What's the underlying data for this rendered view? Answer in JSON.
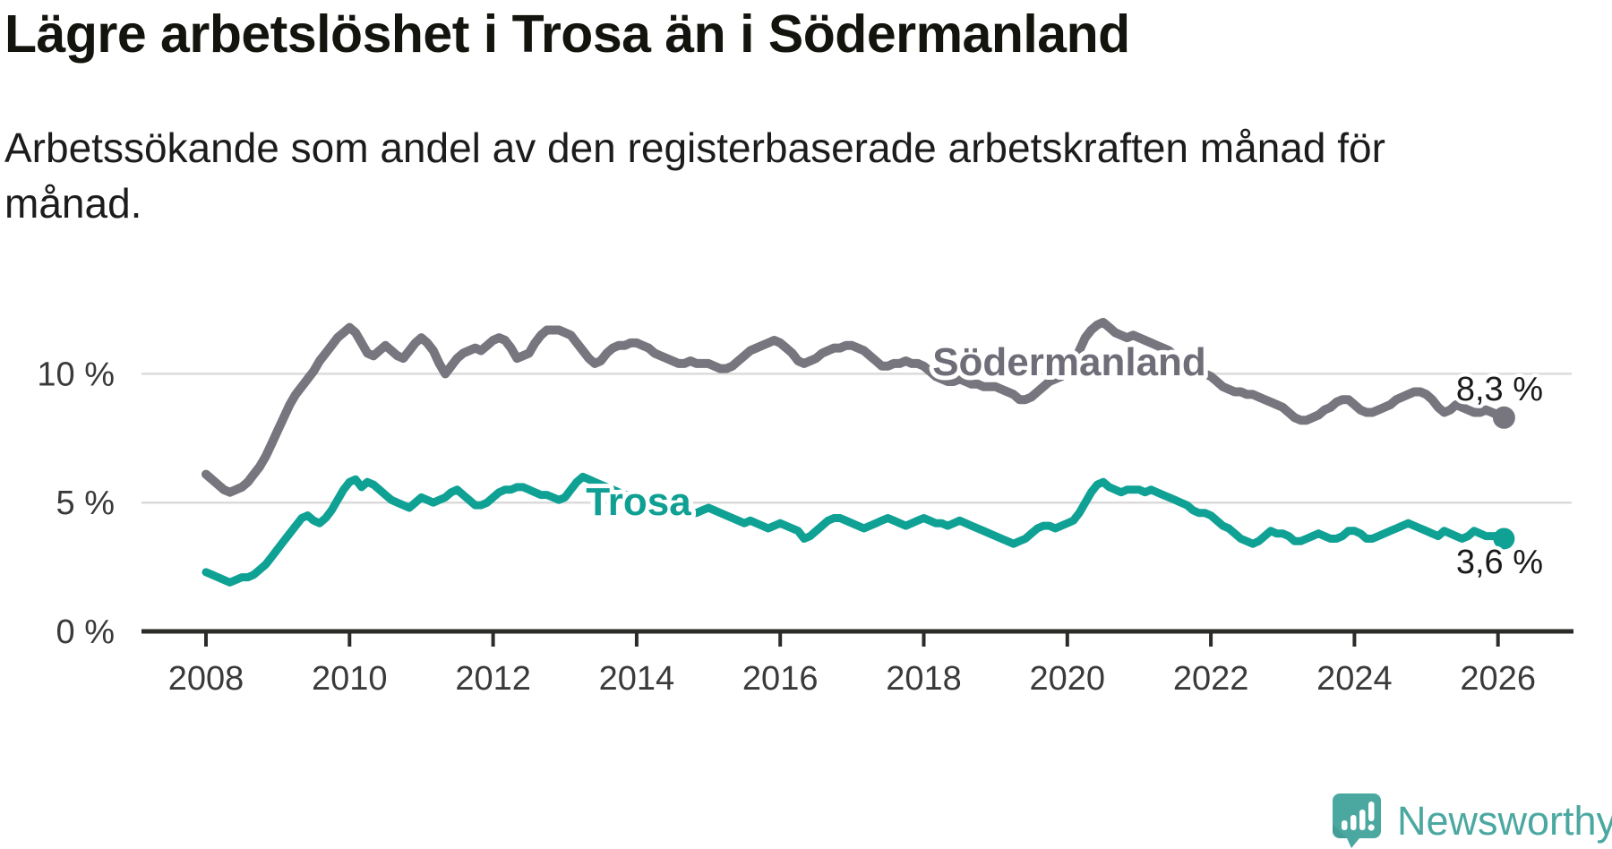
{
  "header": {
    "title": "Lägre arbetslöshet i Trosa än i Södermanland",
    "subtitle_lines": [
      "Arbetssökande som andel av den registerbaserade arbetskraften månad för",
      "månad."
    ]
  },
  "chart_data": {
    "type": "line",
    "x_unit": "month",
    "x_start_year": 2008,
    "points_per_year": 12,
    "x_ticks": [
      "2008",
      "2010",
      "2012",
      "2014",
      "2016",
      "2018",
      "2020",
      "2022",
      "2024",
      "2026"
    ],
    "y_ticks": [
      {
        "value": 0,
        "label": "0 %"
      },
      {
        "value": 5,
        "label": "5 %"
      },
      {
        "value": 10,
        "label": "10 %"
      }
    ],
    "ylim": [
      0,
      12.5
    ],
    "grid": "horizontal",
    "legend_position": "inline-labels",
    "colors": {
      "soermanland_line": "#77767F",
      "soermanland_label": "#6F6E78",
      "trosa_line": "#10A195",
      "trosa_label": "#0FA093",
      "gridline": "#DBDBDB",
      "axis": "#2B2B28",
      "tick_text": "#3A3A3A",
      "value_text": "#1A1A1A"
    },
    "series": [
      {
        "name": "Södermanland",
        "color": "#77767F",
        "label_color": "#6F6E78",
        "end_label": "8,3 %",
        "values": [
          6.1,
          5.9,
          5.7,
          5.5,
          5.4,
          5.5,
          5.6,
          5.8,
          6.1,
          6.4,
          6.8,
          7.3,
          7.8,
          8.3,
          8.8,
          9.2,
          9.5,
          9.8,
          10.1,
          10.5,
          10.8,
          11.1,
          11.4,
          11.6,
          11.8,
          11.6,
          11.2,
          10.8,
          10.7,
          10.9,
          11.1,
          10.9,
          10.7,
          10.6,
          10.9,
          11.2,
          11.4,
          11.2,
          10.9,
          10.4,
          10.0,
          10.3,
          10.6,
          10.8,
          10.9,
          11.0,
          10.9,
          11.1,
          11.3,
          11.4,
          11.3,
          11.0,
          10.6,
          10.7,
          10.8,
          11.2,
          11.5,
          11.7,
          11.7,
          11.7,
          11.6,
          11.5,
          11.2,
          10.9,
          10.6,
          10.4,
          10.5,
          10.8,
          11.0,
          11.1,
          11.1,
          11.2,
          11.2,
          11.1,
          11.0,
          10.8,
          10.7,
          10.6,
          10.5,
          10.4,
          10.4,
          10.5,
          10.4,
          10.4,
          10.4,
          10.3,
          10.2,
          10.2,
          10.3,
          10.5,
          10.7,
          10.9,
          11.0,
          11.1,
          11.2,
          11.3,
          11.2,
          11.0,
          10.8,
          10.5,
          10.4,
          10.5,
          10.6,
          10.8,
          10.9,
          11.0,
          11.0,
          11.1,
          11.1,
          11.0,
          10.9,
          10.7,
          10.5,
          10.3,
          10.3,
          10.4,
          10.4,
          10.5,
          10.4,
          10.4,
          10.3,
          10.1,
          9.9,
          9.8,
          9.7,
          9.7,
          9.8,
          9.7,
          9.6,
          9.6,
          9.5,
          9.5,
          9.5,
          9.4,
          9.3,
          9.2,
          9.0,
          9.0,
          9.1,
          9.3,
          9.5,
          9.7,
          9.8,
          9.9,
          10.1,
          10.4,
          10.9,
          11.4,
          11.7,
          11.9,
          12.0,
          11.8,
          11.6,
          11.5,
          11.4,
          11.5,
          11.4,
          11.3,
          11.2,
          11.1,
          11.0,
          10.9,
          10.7,
          10.5,
          10.4,
          10.2,
          10.1,
          10.0,
          9.9,
          9.7,
          9.5,
          9.4,
          9.3,
          9.3,
          9.2,
          9.2,
          9.1,
          9.0,
          8.9,
          8.8,
          8.7,
          8.5,
          8.3,
          8.2,
          8.2,
          8.3,
          8.4,
          8.6,
          8.7,
          8.9,
          9.0,
          9.0,
          8.8,
          8.6,
          8.5,
          8.5,
          8.6,
          8.7,
          8.8,
          9.0,
          9.1,
          9.2,
          9.3,
          9.3,
          9.2,
          9.0,
          8.7,
          8.5,
          8.6,
          8.8,
          8.7,
          8.6,
          8.5,
          8.5,
          8.6,
          8.5,
          8.4,
          8.3
        ]
      },
      {
        "name": "Trosa",
        "color": "#10A195",
        "label_color": "#0FA093",
        "end_label": "3,6 %",
        "values": [
          2.3,
          2.2,
          2.1,
          2.0,
          1.9,
          2.0,
          2.1,
          2.1,
          2.2,
          2.4,
          2.6,
          2.9,
          3.2,
          3.5,
          3.8,
          4.1,
          4.4,
          4.5,
          4.3,
          4.2,
          4.4,
          4.7,
          5.1,
          5.5,
          5.8,
          5.9,
          5.6,
          5.8,
          5.7,
          5.5,
          5.3,
          5.1,
          5.0,
          4.9,
          4.8,
          5.0,
          5.2,
          5.1,
          5.0,
          5.1,
          5.2,
          5.4,
          5.5,
          5.3,
          5.1,
          4.9,
          4.9,
          5.0,
          5.2,
          5.4,
          5.5,
          5.5,
          5.6,
          5.6,
          5.5,
          5.4,
          5.3,
          5.3,
          5.2,
          5.1,
          5.2,
          5.5,
          5.8,
          6.0,
          5.9,
          5.8,
          5.7,
          5.6,
          5.5,
          5.4,
          5.3,
          5.3,
          5.2,
          5.1,
          5.0,
          4.9,
          4.8,
          4.7,
          4.6,
          4.6,
          4.7,
          4.6,
          4.6,
          4.7,
          4.8,
          4.7,
          4.6,
          4.5,
          4.4,
          4.3,
          4.2,
          4.3,
          4.2,
          4.1,
          4.0,
          4.1,
          4.2,
          4.1,
          4.0,
          3.9,
          3.6,
          3.7,
          3.9,
          4.1,
          4.3,
          4.4,
          4.4,
          4.3,
          4.2,
          4.1,
          4.0,
          4.1,
          4.2,
          4.3,
          4.4,
          4.3,
          4.2,
          4.1,
          4.2,
          4.3,
          4.4,
          4.3,
          4.2,
          4.2,
          4.1,
          4.2,
          4.3,
          4.2,
          4.1,
          4.0,
          3.9,
          3.8,
          3.7,
          3.6,
          3.5,
          3.4,
          3.5,
          3.6,
          3.8,
          4.0,
          4.1,
          4.1,
          4.0,
          4.1,
          4.2,
          4.3,
          4.6,
          5.0,
          5.4,
          5.7,
          5.8,
          5.6,
          5.5,
          5.4,
          5.5,
          5.5,
          5.5,
          5.4,
          5.5,
          5.4,
          5.3,
          5.2,
          5.1,
          5.0,
          4.9,
          4.7,
          4.6,
          4.6,
          4.5,
          4.3,
          4.1,
          4.0,
          3.8,
          3.6,
          3.5,
          3.4,
          3.5,
          3.7,
          3.9,
          3.8,
          3.8,
          3.7,
          3.5,
          3.5,
          3.6,
          3.7,
          3.8,
          3.7,
          3.6,
          3.6,
          3.7,
          3.9,
          3.9,
          3.8,
          3.6,
          3.6,
          3.7,
          3.8,
          3.9,
          4.0,
          4.1,
          4.2,
          4.1,
          4.0,
          3.9,
          3.8,
          3.7,
          3.9,
          3.8,
          3.7,
          3.6,
          3.7,
          3.9,
          3.8,
          3.7,
          3.7,
          3.7,
          3.6
        ]
      }
    ]
  },
  "footer": {
    "brand": "Newsworthy",
    "brand_color": "#4BA8A1",
    "logo_icon": "newsworthy-speech-bubble-chart-icon"
  }
}
